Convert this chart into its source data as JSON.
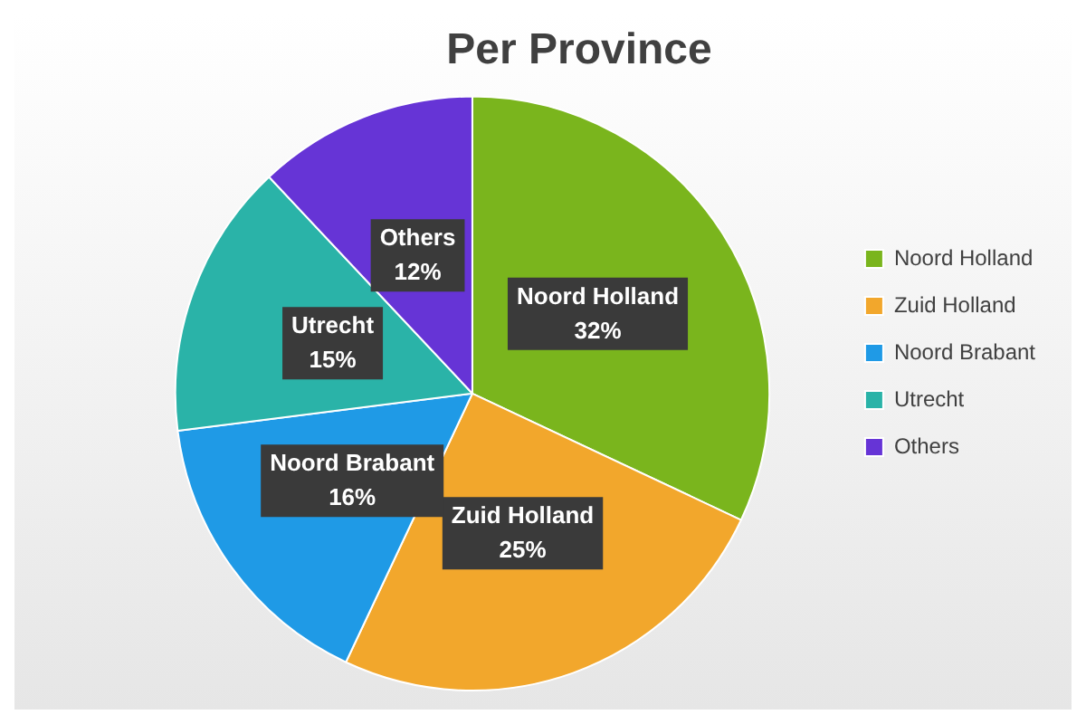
{
  "chart_data": {
    "type": "pie",
    "title": "Per Province",
    "categories": [
      "Noord Holland",
      "Zuid Holland",
      "Noord Brabant",
      "Utrecht",
      "Others"
    ],
    "values": [
      32,
      25,
      16,
      15,
      12
    ],
    "colors": [
      "#7ab51d",
      "#f2a72c",
      "#1f9ae6",
      "#2ab3a8",
      "#6634d6"
    ],
    "value_labels": [
      "32%",
      "25%",
      "16%",
      "15%",
      "12%"
    ],
    "legend": "right"
  }
}
